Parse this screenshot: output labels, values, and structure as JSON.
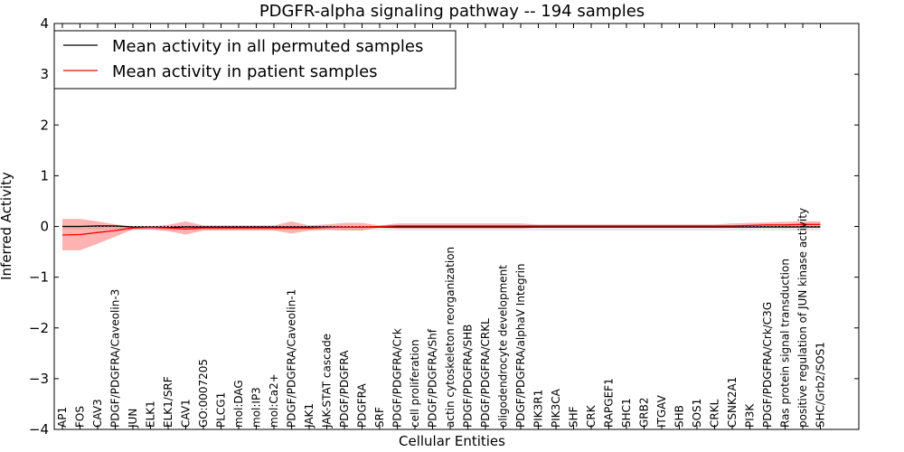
{
  "chart_data": {
    "type": "line",
    "title": "PDGFR-alpha signaling pathway -- 194 samples",
    "xlabel": "Cellular Entities",
    "ylabel": "Inferred Activity",
    "ylim": [
      -4,
      4
    ],
    "yticks": [
      "4",
      "3",
      "2",
      "1",
      "0",
      "−1",
      "−2",
      "−3",
      "−4"
    ],
    "yticks_values": [
      4,
      3,
      2,
      1,
      0,
      -1,
      -2,
      -3,
      -4
    ],
    "grid": false,
    "legend": "top-left",
    "categories": [
      "AP1",
      "FOS",
      "CAV3",
      "PDGF/PDGFRA/Caveolin-3",
      "JUN",
      "ELK1",
      "ELK1/SRF",
      "CAV1",
      "GO:0007205",
      "PLCG1",
      "mol:DAG",
      "mol:IP3",
      "mol:Ca2+",
      "PDGF/PDGFRA/Caveolin-1",
      "JAK1",
      "JAK-STAT cascade",
      "PDGF/PDGFRA",
      "PDGFRA",
      "SRF",
      "PDGF/PDGFRA/Crk",
      "cell proliferation",
      "PDGF/PDGFRA/Shf",
      "actin cytoskeleton reorganization",
      "PDGF/PDGFRA/SHB",
      "PDGF/PDGFRA/CRKL",
      "oligodendrocyte development",
      "PDGF/PDGFRA/alphaV Integrin",
      "PIK3R1",
      "PIK3CA",
      "SHF",
      "CRK",
      "RAPGEF1",
      "SHC1",
      "GRB2",
      "ITGAV",
      "SHB",
      "SOS1",
      "CRKL",
      "CSNK2A1",
      "PI3K",
      "PDGF/PDGFRA/Crk/C3G",
      "Ras protein signal transduction",
      "positive regulation of JUN kinase activity",
      "SHC/Grb2/SOS1"
    ],
    "series": [
      {
        "name": "Mean activity in all permuted samples",
        "color": "#000000",
        "values": [
          0.0,
          0.0,
          0.01,
          0.01,
          -0.01,
          -0.01,
          -0.02,
          -0.01,
          -0.01,
          -0.01,
          -0.01,
          -0.01,
          -0.01,
          -0.01,
          -0.01,
          -0.01,
          -0.01,
          -0.01,
          -0.01,
          -0.01,
          -0.01,
          -0.01,
          -0.01,
          -0.01,
          -0.01,
          -0.01,
          -0.01,
          -0.01,
          -0.01,
          -0.01,
          -0.01,
          -0.01,
          -0.01,
          -0.01,
          -0.01,
          -0.01,
          -0.01,
          -0.01,
          -0.01,
          -0.01,
          -0.01,
          -0.01,
          -0.01,
          -0.01
        ],
        "band_upper": [
          0.02,
          0.02,
          0.02,
          0.02,
          0.0,
          0.0,
          0.0,
          0.02,
          0.0,
          0.0,
          0.0,
          0.0,
          0.0,
          0.0,
          0.0,
          0.0,
          0.0,
          0.0,
          0.0,
          0.0,
          0.0,
          0.0,
          0.0,
          0.0,
          0.0,
          0.0,
          0.0,
          0.0,
          0.0,
          0.0,
          0.0,
          0.0,
          0.0,
          0.0,
          0.0,
          0.0,
          0.0,
          0.0,
          0.0,
          0.0,
          0.0,
          0.0,
          0.0,
          0.0
        ],
        "band_lower": [
          -0.05,
          -0.05,
          -0.05,
          -0.05,
          -0.07,
          -0.07,
          -0.07,
          -0.06,
          -0.07,
          -0.07,
          -0.07,
          -0.07,
          -0.07,
          -0.07,
          -0.07,
          -0.07,
          -0.07,
          -0.07,
          -0.07,
          -0.08,
          -0.08,
          -0.08,
          -0.08,
          -0.08,
          -0.08,
          -0.08,
          -0.08,
          -0.08,
          -0.08,
          -0.08,
          -0.08,
          -0.08,
          -0.08,
          -0.08,
          -0.08,
          -0.08,
          -0.08,
          -0.08,
          -0.08,
          -0.08,
          -0.08,
          -0.08,
          -0.08,
          -0.08
        ]
      },
      {
        "name": "Mean activity in patient samples",
        "color": "#ff0000",
        "values": [
          -0.17,
          -0.16,
          -0.12,
          -0.08,
          -0.03,
          -0.02,
          -0.03,
          -0.05,
          -0.03,
          -0.03,
          -0.03,
          -0.03,
          -0.03,
          -0.03,
          -0.03,
          -0.02,
          -0.01,
          -0.01,
          0.0,
          0.01,
          0.01,
          0.01,
          0.01,
          0.01,
          0.01,
          0.01,
          0.01,
          0.01,
          0.01,
          0.01,
          0.01,
          0.01,
          0.01,
          0.01,
          0.01,
          0.01,
          0.01,
          0.01,
          0.01,
          0.02,
          0.03,
          0.03,
          0.04,
          0.04
        ],
        "band_upper": [
          0.15,
          0.15,
          0.1,
          0.04,
          0.0,
          0.0,
          0.03,
          0.1,
          0.02,
          0.02,
          0.02,
          0.02,
          0.02,
          0.1,
          0.02,
          0.04,
          0.07,
          0.07,
          0.02,
          0.06,
          0.06,
          0.06,
          0.06,
          0.06,
          0.06,
          0.06,
          0.06,
          0.04,
          0.04,
          0.04,
          0.04,
          0.04,
          0.04,
          0.04,
          0.04,
          0.04,
          0.04,
          0.04,
          0.06,
          0.07,
          0.08,
          0.09,
          0.1,
          0.1
        ],
        "band_lower": [
          -0.47,
          -0.47,
          -0.34,
          -0.2,
          -0.06,
          -0.06,
          -0.09,
          -0.16,
          -0.08,
          -0.08,
          -0.08,
          -0.08,
          -0.08,
          -0.14,
          -0.08,
          -0.07,
          -0.08,
          -0.08,
          -0.02,
          -0.04,
          -0.04,
          -0.04,
          -0.04,
          -0.04,
          -0.04,
          -0.04,
          -0.04,
          -0.02,
          -0.02,
          -0.02,
          -0.02,
          -0.02,
          -0.02,
          -0.02,
          -0.02,
          -0.02,
          -0.02,
          -0.02,
          -0.02,
          -0.02,
          -0.02,
          -0.02,
          -0.01,
          -0.01
        ]
      }
    ]
  }
}
